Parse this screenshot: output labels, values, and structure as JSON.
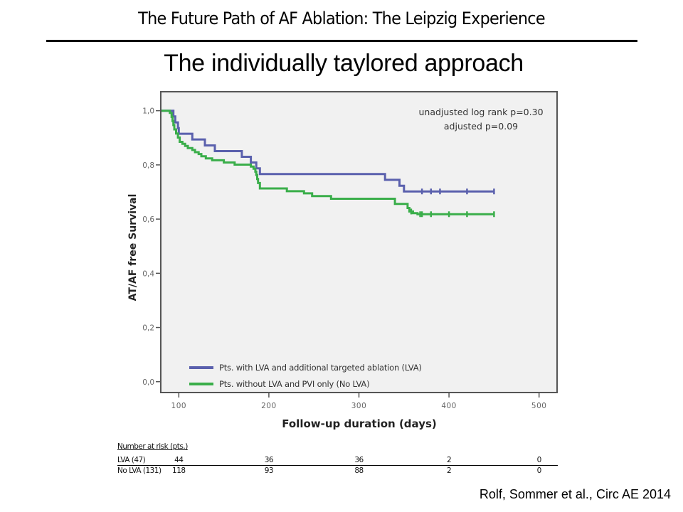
{
  "slide": {
    "header_title": "The Future Path of AF Ablation: The Leipzig Experience",
    "subtitle": "The individually taylored approach",
    "citation": "Rolf, Sommer et al., Circ AE 2014"
  },
  "colors": {
    "lva": "#5a60ad",
    "no_lva": "#3aae4a",
    "plot_background": "#f1f1f1",
    "frame": "#555555"
  },
  "chart_data": {
    "type": "line",
    "subtype": "kaplan-meier step",
    "title": "",
    "xlabel": "Follow-up duration (days)",
    "ylabel": "AT/AF free Survival",
    "xlim": [
      80,
      520
    ],
    "ylim": [
      -0.04,
      1.07
    ],
    "x_ticks": [
      100,
      200,
      300,
      400,
      500
    ],
    "x_tick_labels": [
      "100",
      "200",
      "300",
      "400",
      "500"
    ],
    "y_ticks": [
      0.0,
      0.2,
      0.4,
      0.6,
      0.8,
      1.0
    ],
    "y_tick_labels": [
      "0,0",
      "0,2",
      "0,4",
      "0,6",
      "0,8",
      "1,0"
    ],
    "grid": false,
    "annotations": [
      "unadjusted log rank p=0.30",
      "adjusted p=0.09"
    ],
    "annotation_position": "top-right",
    "legend_position": "bottom-left",
    "series": [
      {
        "name": "Pts. with LVA and additional targeted ablation (LVA)",
        "key": "lva",
        "color": "#5a60ad",
        "steps": [
          [
            80,
            1.0
          ],
          [
            94,
            0.979
          ],
          [
            96,
            0.957
          ],
          [
            99,
            0.936
          ],
          [
            100,
            0.915
          ],
          [
            115,
            0.894
          ],
          [
            129,
            0.872
          ],
          [
            140,
            0.851
          ],
          [
            170,
            0.83
          ],
          [
            180,
            0.809
          ],
          [
            186,
            0.787
          ],
          [
            190,
            0.766
          ],
          [
            329,
            0.745
          ],
          [
            345,
            0.723
          ],
          [
            350,
            0.702
          ],
          [
            450,
            0.702
          ]
        ],
        "censored": [
          370,
          380,
          390,
          420,
          450
        ]
      },
      {
        "name": "Pts. without LVA and PVI only (No LVA)",
        "key": "no_lva",
        "color": "#3aae4a",
        "steps": [
          [
            80,
            1.0
          ],
          [
            90,
            0.992
          ],
          [
            92,
            0.977
          ],
          [
            93,
            0.962
          ],
          [
            94,
            0.947
          ],
          [
            95,
            0.931
          ],
          [
            97,
            0.916
          ],
          [
            99,
            0.901
          ],
          [
            101,
            0.885
          ],
          [
            104,
            0.878
          ],
          [
            107,
            0.87
          ],
          [
            110,
            0.862
          ],
          [
            115,
            0.855
          ],
          [
            118,
            0.847
          ],
          [
            122,
            0.84
          ],
          [
            125,
            0.832
          ],
          [
            130,
            0.824
          ],
          [
            137,
            0.817
          ],
          [
            150,
            0.809
          ],
          [
            162,
            0.801
          ],
          [
            180,
            0.794
          ],
          [
            183,
            0.786
          ],
          [
            185,
            0.775
          ],
          [
            186,
            0.763
          ],
          [
            187,
            0.748
          ],
          [
            188,
            0.733
          ],
          [
            190,
            0.713
          ],
          [
            220,
            0.703
          ],
          [
            239,
            0.695
          ],
          [
            248,
            0.685
          ],
          [
            269,
            0.675
          ],
          [
            340,
            0.656
          ],
          [
            354,
            0.641
          ],
          [
            356,
            0.628
          ],
          [
            360,
            0.622
          ],
          [
            365,
            0.618
          ],
          [
            450,
            0.618
          ]
        ],
        "censored": [
          358,
          368,
          370,
          380,
          400,
          420,
          450
        ]
      }
    ],
    "risk_table": {
      "title": "Number at risk (pts.)",
      "time_points": [
        100,
        200,
        300,
        400,
        500
      ],
      "rows": [
        {
          "label": "LVA (47)",
          "values": [
            "44",
            "36",
            "36",
            "2",
            "0"
          ]
        },
        {
          "label": "No LVA (131)",
          "values": [
            "118",
            "93",
            "88",
            "2",
            "0"
          ]
        }
      ]
    }
  }
}
